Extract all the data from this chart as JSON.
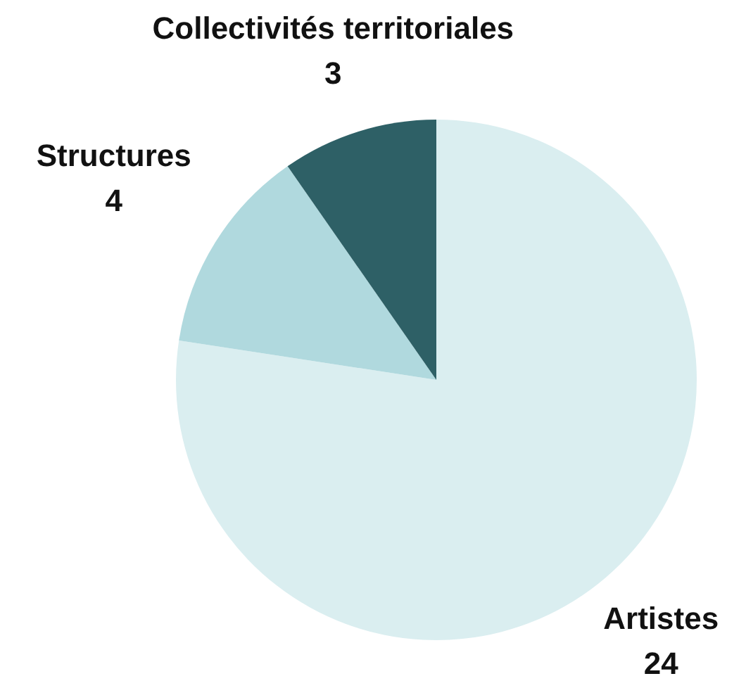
{
  "chart_data": {
    "type": "pie",
    "categories": [
      "Artistes",
      "Structures",
      "Collectivités territoriales"
    ],
    "values": [
      24,
      4,
      3
    ],
    "colors": [
      "#daeef0",
      "#b0d9de",
      "#2e6066"
    ],
    "data_labels": true,
    "legend": false
  }
}
